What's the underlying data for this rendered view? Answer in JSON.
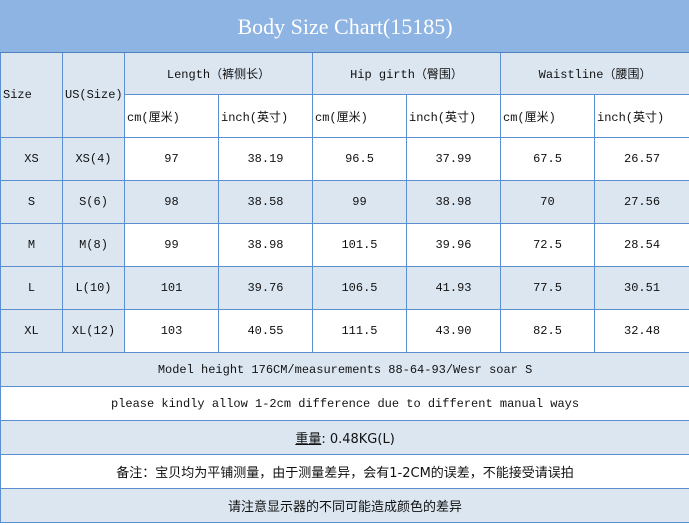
{
  "title": "Body Size Chart(15185)",
  "headers": {
    "size": "Size",
    "us_size": "US(Size)",
    "groups": [
      "Length（裤侧长）",
      "Hip girth（臀围）",
      "Waistline（腰围）"
    ],
    "units": [
      "cm(厘米)",
      "inch(英寸)",
      "cm(厘米)",
      "inch(英寸)",
      "cm(厘米)",
      "inch(英寸)"
    ]
  },
  "rows": [
    {
      "size": "XS",
      "us": "XS(4)",
      "values": [
        "97",
        "38.19",
        "96.5",
        "37.99",
        "67.5",
        "26.57"
      ]
    },
    {
      "size": "S",
      "us": "S(6)",
      "values": [
        "98",
        "38.58",
        "99",
        "38.98",
        "70",
        "27.56"
      ]
    },
    {
      "size": "M",
      "us": "M(8)",
      "values": [
        "99",
        "38.98",
        "101.5",
        "39.96",
        "72.5",
        "28.54"
      ]
    },
    {
      "size": "L",
      "us": "L(10)",
      "values": [
        "101",
        "39.76",
        "106.5",
        "41.93",
        "77.5",
        "30.51"
      ]
    },
    {
      "size": "XL",
      "us": "XL(12)",
      "values": [
        "103",
        "40.55",
        "111.5",
        "43.90",
        "82.5",
        "32.48"
      ]
    }
  ],
  "notes": {
    "model": "Model height 176CM/measurements 88-64-93/Wesr soar S",
    "difference": "please kindly allow 1-2cm difference due to different manual ways",
    "weight_label": "重量",
    "weight_value": ": 0.48KG(L)",
    "remark": "备注：宝贝均为平铺测量，由于测量差异，会有1-2CM的误差，不能接受请误拍",
    "color_note": "请注意显示器的不同可能造成颜色的差异"
  },
  "colors": {
    "title_bg": "#8db4e2",
    "light_row": "#dce6f1",
    "border": "#5b8fd0"
  }
}
